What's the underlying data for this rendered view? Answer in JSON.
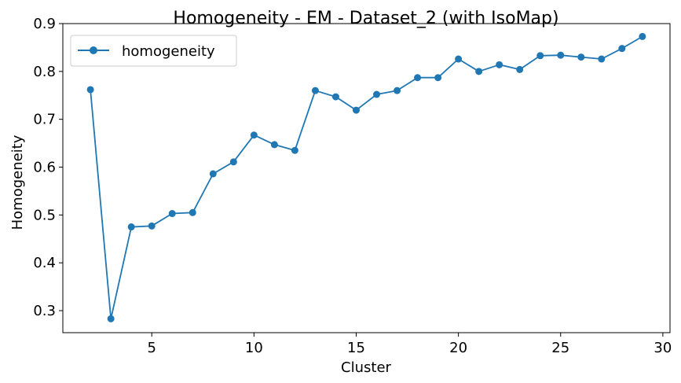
{
  "chart_data": {
    "type": "line",
    "title": "Homogeneity - EM - Dataset_2 (with IsoMap)",
    "xlabel": "Cluster",
    "ylabel": "Homogeneity",
    "xlim": [
      0.65,
      30.35
    ],
    "ylim": [
      0.254,
      0.9
    ],
    "x_ticks": [
      5,
      10,
      15,
      20,
      25,
      30
    ],
    "y_ticks": [
      0.3,
      0.4,
      0.5,
      0.6,
      0.7,
      0.8,
      0.9
    ],
    "grid": false,
    "legend_position": "top-left",
    "series": [
      {
        "name": "homogeneity",
        "color": "#1f77b4",
        "marker": "circle",
        "x": [
          2,
          3,
          4,
          5,
          6,
          7,
          8,
          9,
          10,
          11,
          12,
          13,
          14,
          15,
          16,
          17,
          18,
          19,
          20,
          21,
          22,
          23,
          24,
          25,
          26,
          27,
          28,
          29
        ],
        "y": [
          0.762,
          0.283,
          0.475,
          0.477,
          0.503,
          0.505,
          0.586,
          0.611,
          0.667,
          0.647,
          0.635,
          0.76,
          0.747,
          0.719,
          0.752,
          0.76,
          0.787,
          0.787,
          0.826,
          0.8,
          0.814,
          0.804,
          0.833,
          0.834,
          0.83,
          0.826,
          0.848,
          0.873
        ]
      }
    ]
  }
}
